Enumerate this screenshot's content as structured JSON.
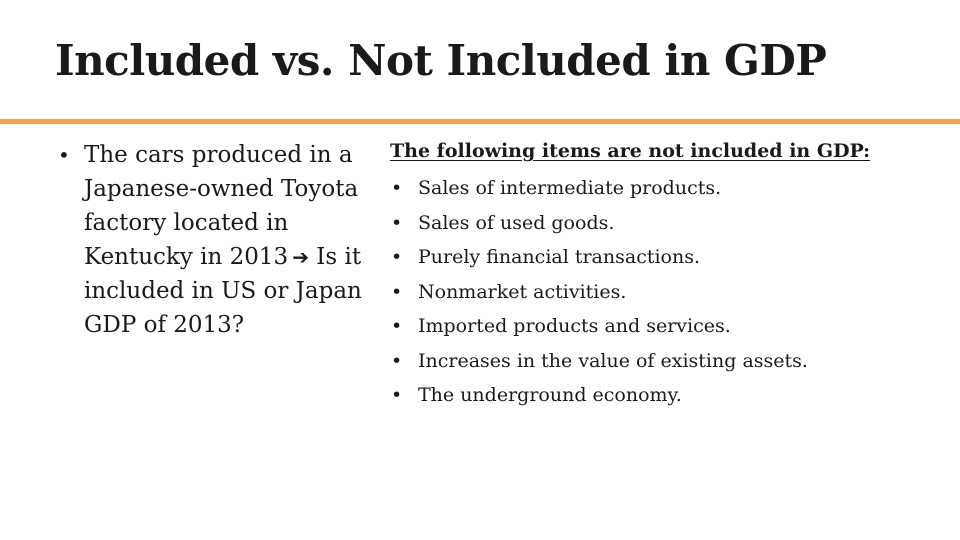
{
  "slide": {
    "title": "Included vs. Not Included in GDP",
    "accent_color": "#F0A050"
  },
  "left": {
    "bullet_text": "The cars produced in a Japanese-owned Toyota factory located in Kentucky in 2013",
    "arrow_icon": "right-arrow-icon",
    "question": "Is it included in US or Japan GDP of 2013?"
  },
  "right": {
    "heading": "The following items are not included in GDP:",
    "items": [
      "Sales of intermediate products.",
      "Sales of used goods.",
      "Purely financial transactions.",
      "Nonmarket activities.",
      "Imported products and services.",
      "Increases in the value of existing assets.",
      "The underground economy."
    ]
  }
}
